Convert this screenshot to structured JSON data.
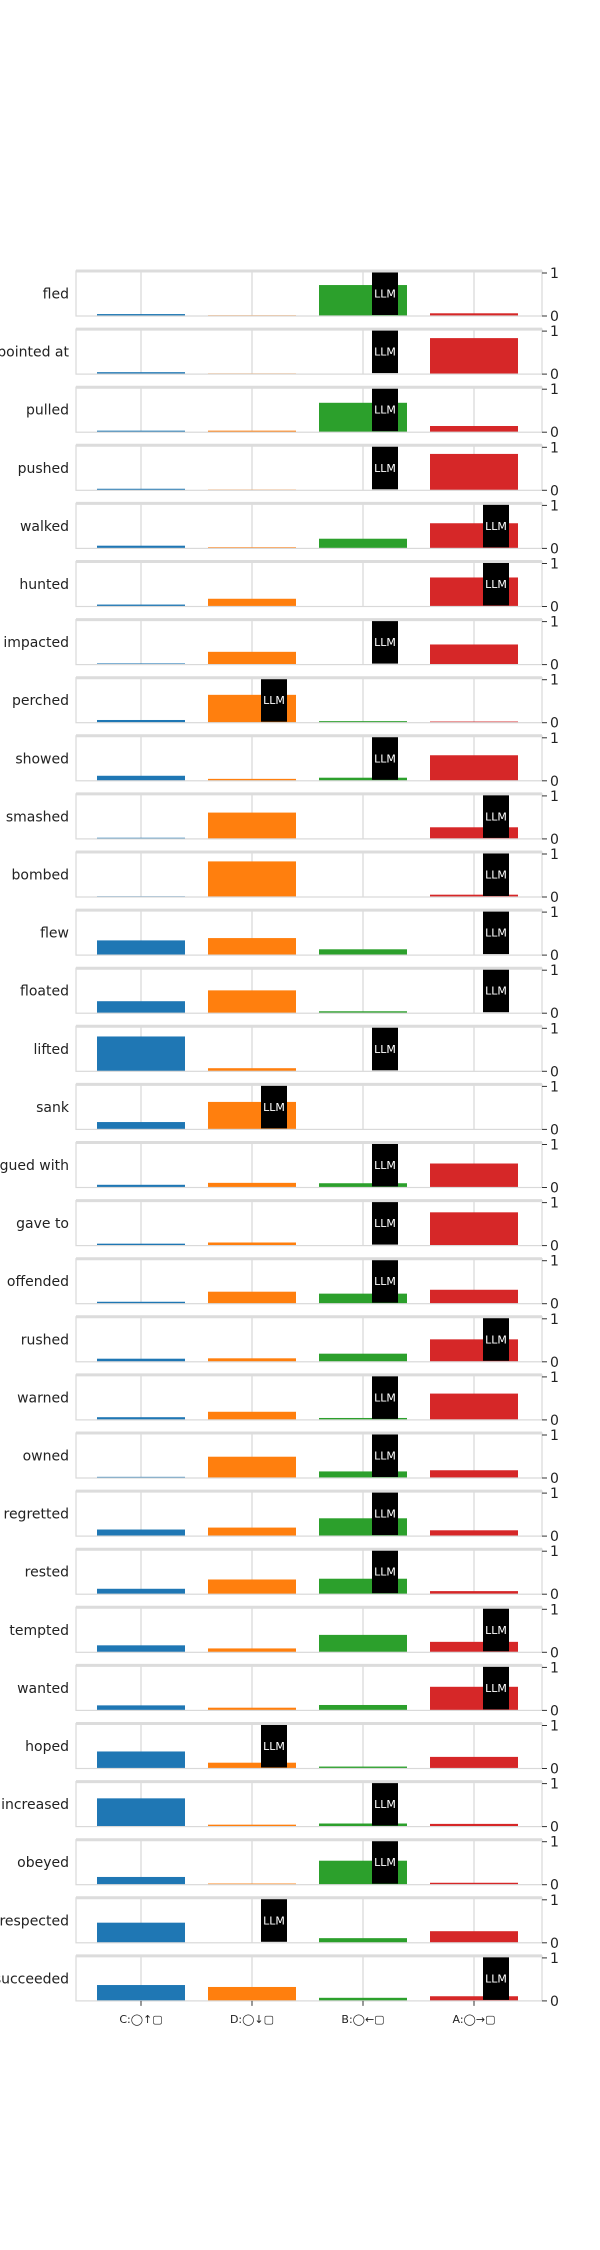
{
  "chart_data": {
    "type": "bar",
    "categories": [
      "C:◯↑▢",
      "D:◯↓▢",
      "B:◯←▢",
      "A:◯→▢"
    ],
    "colors": [
      "#1f77b4",
      "#ff7f0e",
      "#2ca02c",
      "#d62728"
    ],
    "ylim": [
      0,
      1
    ],
    "yticks": [
      "0",
      "1"
    ],
    "grid": true,
    "marker_label": "LLM",
    "marker_color": "#000000",
    "panels": [
      {
        "label": "fled",
        "values": [
          0.05,
          0.02,
          0.8,
          0.07
        ],
        "llm": "B:◯←▢"
      },
      {
        "label": "pointed at",
        "values": [
          0.05,
          0.02,
          0.0,
          0.93
        ],
        "llm": "B:◯←▢"
      },
      {
        "label": "pulled",
        "values": [
          0.04,
          0.04,
          0.76,
          0.16
        ],
        "llm": "B:◯←▢"
      },
      {
        "label": "pushed",
        "values": [
          0.04,
          0.02,
          0.0,
          0.94
        ],
        "llm": "B:◯←▢"
      },
      {
        "label": "walked",
        "values": [
          0.07,
          0.03,
          0.25,
          0.65
        ],
        "llm": "A:◯→▢"
      },
      {
        "label": "hunted",
        "values": [
          0.05,
          0.2,
          0.0,
          0.75
        ],
        "llm": "A:◯→▢"
      },
      {
        "label": "impacted",
        "values": [
          0.03,
          0.33,
          0.0,
          0.52
        ],
        "llm": "B:◯←▢"
      },
      {
        "label": "perched",
        "values": [
          0.07,
          0.72,
          0.04,
          0.03
        ],
        "llm": "D:◯↓▢"
      },
      {
        "label": "showed",
        "values": [
          0.13,
          0.05,
          0.08,
          0.66
        ],
        "llm": "B:◯←▢"
      },
      {
        "label": "smashed",
        "values": [
          0.03,
          0.68,
          0.0,
          0.3
        ],
        "llm": "A:◯→▢"
      },
      {
        "label": "bombed",
        "values": [
          0.02,
          0.92,
          0.0,
          0.06
        ],
        "llm": "A:◯→▢"
      },
      {
        "label": "flew",
        "values": [
          0.38,
          0.44,
          0.15,
          0.0
        ],
        "llm": "A:◯→▢"
      },
      {
        "label": "floated",
        "values": [
          0.31,
          0.59,
          0.05,
          0.0
        ],
        "llm": "A:◯→▢"
      },
      {
        "label": "lifted",
        "values": [
          0.9,
          0.08,
          0.0,
          0.0
        ],
        "llm": "B:◯←▢"
      },
      {
        "label": "sank",
        "values": [
          0.19,
          0.71,
          0.0,
          0.0
        ],
        "llm": "D:◯↓▢"
      },
      {
        "label": "argued with",
        "values": [
          0.07,
          0.12,
          0.11,
          0.62
        ],
        "llm": "B:◯←▢"
      },
      {
        "label": "gave to",
        "values": [
          0.05,
          0.08,
          0.0,
          0.86
        ],
        "llm": "B:◯←▢"
      },
      {
        "label": "offended",
        "values": [
          0.05,
          0.31,
          0.26,
          0.36
        ],
        "llm": "B:◯←▢"
      },
      {
        "label": "rushed",
        "values": [
          0.08,
          0.09,
          0.21,
          0.58
        ],
        "llm": "A:◯→▢"
      },
      {
        "label": "warned",
        "values": [
          0.07,
          0.21,
          0.05,
          0.68
        ],
        "llm": "B:◯←▢"
      },
      {
        "label": "owned",
        "values": [
          0.03,
          0.55,
          0.17,
          0.2
        ],
        "llm": "B:◯←▢"
      },
      {
        "label": "regretted",
        "values": [
          0.17,
          0.22,
          0.46,
          0.15
        ],
        "llm": "B:◯←▢"
      },
      {
        "label": "rested",
        "values": [
          0.14,
          0.38,
          0.4,
          0.08
        ],
        "llm": "B:◯←▢"
      },
      {
        "label": "tempted",
        "values": [
          0.18,
          0.1,
          0.45,
          0.27
        ],
        "llm": "A:◯→▢"
      },
      {
        "label": "wanted",
        "values": [
          0.13,
          0.07,
          0.14,
          0.61
        ],
        "llm": "A:◯→▢"
      },
      {
        "label": "hoped",
        "values": [
          0.44,
          0.15,
          0.05,
          0.3
        ],
        "llm": "D:◯↓▢"
      },
      {
        "label": "increased",
        "values": [
          0.73,
          0.05,
          0.08,
          0.07
        ],
        "llm": "B:◯←▢"
      },
      {
        "label": "obeyed",
        "values": [
          0.2,
          0.03,
          0.62,
          0.05
        ],
        "llm": "B:◯←▢"
      },
      {
        "label": "respected",
        "values": [
          0.52,
          0.0,
          0.12,
          0.3
        ],
        "llm": "D:◯↓▢"
      },
      {
        "label": "succeeded",
        "values": [
          0.41,
          0.36,
          0.08,
          0.12
        ],
        "llm": "A:◯→▢"
      }
    ]
  }
}
